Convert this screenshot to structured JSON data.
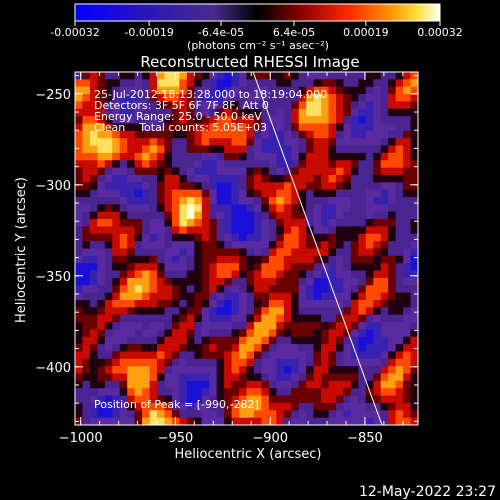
{
  "colorbar": {
    "tick_labels": [
      "-0.00032",
      "-0.00019",
      "-6.4e-05",
      "6.4e-05",
      "0.00019",
      "0.00032"
    ],
    "tick_values": [
      -0.00032,
      -0.00019,
      -6.4e-05,
      6.4e-05,
      0.00019,
      0.00032
    ],
    "range": [
      -0.00032,
      0.00032
    ],
    "unit_label": "(photons cm⁻² s⁻¹ asec⁻²)",
    "colors": [
      "#0000ff",
      "#3a1aa8",
      "#5a2a84",
      "#000000",
      "#8a0000",
      "#ff2a00",
      "#ff8c00",
      "#ffe040",
      "#ffffff"
    ]
  },
  "chart_data": {
    "type": "heatmap",
    "title": "Reconstructed RHESSI Image",
    "xlabel": "Heliocentric X (arcsec)",
    "ylabel": "Heliocentric Y (arcsec)",
    "xlim": [
      -1003,
      -822
    ],
    "ylim": [
      -432,
      -238
    ],
    "x_ticks": [
      -1000,
      -950,
      -900,
      -850
    ],
    "y_ticks": [
      -250,
      -300,
      -350,
      -400
    ],
    "x_tick_labels": [
      "−1000",
      "−950",
      "−900",
      "−850"
    ],
    "y_tick_labels": [
      "−250",
      "−300",
      "−350",
      "−400"
    ],
    "limb_line": [
      [
        -909,
        -238
      ],
      [
        -841,
        -432
      ]
    ],
    "peak_position": [
      -990,
      -282
    ],
    "annotations": [
      "25-Jul-2012 18:13:28.000 to 18:19:04.000",
      "Detectors: 3F 5F 6F 7F 8F, Att 0",
      "Energy Range: 25.0 - 50.0 keV",
      "Clean    Total counts: 5.05E+03",
      "Position of Peak = [-990,-282]"
    ]
  },
  "timestamp": "12-May-2022 23:27"
}
